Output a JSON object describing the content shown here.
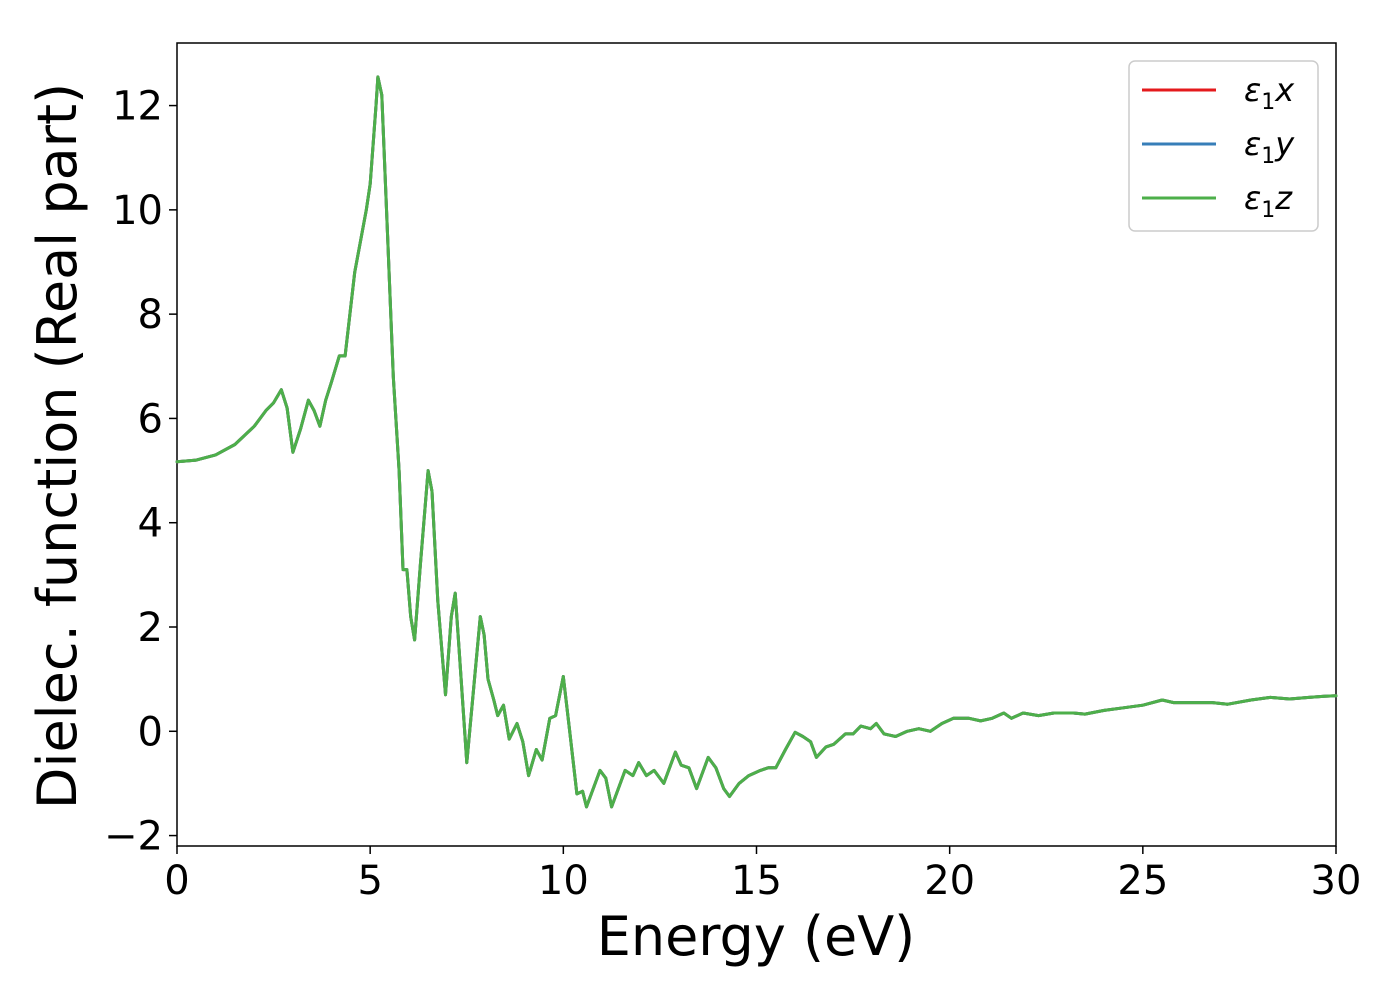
{
  "chart_data": {
    "type": "line",
    "title": "",
    "xlabel": "Energy (eV)",
    "ylabel": "Dielec. function (Real part)",
    "xlim": [
      0,
      30
    ],
    "ylim": [
      -2.2,
      13.2
    ],
    "xticks": [
      0,
      5,
      10,
      15,
      20,
      25,
      30
    ],
    "xtick_labels": [
      "0",
      "5",
      "10",
      "15",
      "20",
      "25",
      "30"
    ],
    "yticks": [
      -2,
      0,
      2,
      4,
      6,
      8,
      10,
      12
    ],
    "ytick_labels": [
      "−2",
      "0",
      "2",
      "4",
      "6",
      "8",
      "10",
      "12"
    ],
    "grid": false,
    "legend_position": "top-right",
    "series": [
      {
        "name": "ε₁x",
        "symbol": "ε",
        "subscript": "1",
        "suffix": "x",
        "color": "#e41a1c"
      },
      {
        "name": "ε₁y",
        "symbol": "ε",
        "subscript": "1",
        "suffix": "y",
        "color": "#377eb8"
      },
      {
        "name": "ε₁z",
        "symbol": "ε",
        "subscript": "1",
        "suffix": "z",
        "color": "#4daf4a"
      }
    ],
    "note_identical_series": true,
    "points": [
      [
        0,
        5.17
      ],
      [
        0.5,
        5.2
      ],
      [
        1.0,
        5.3
      ],
      [
        1.5,
        5.5
      ],
      [
        2.0,
        5.85
      ],
      [
        2.3,
        6.15
      ],
      [
        2.5,
        6.3
      ],
      [
        2.7,
        6.55
      ],
      [
        2.85,
        6.2
      ],
      [
        3.0,
        5.35
      ],
      [
        3.2,
        5.8
      ],
      [
        3.4,
        6.35
      ],
      [
        3.55,
        6.15
      ],
      [
        3.7,
        5.85
      ],
      [
        3.85,
        6.35
      ],
      [
        4.0,
        6.7
      ],
      [
        4.2,
        7.2
      ],
      [
        4.35,
        7.2
      ],
      [
        4.6,
        8.8
      ],
      [
        4.9,
        10.0
      ],
      [
        5.0,
        10.5
      ],
      [
        5.15,
        12.0
      ],
      [
        5.2,
        12.55
      ],
      [
        5.3,
        12.2
      ],
      [
        5.45,
        9.5
      ],
      [
        5.6,
        6.8
      ],
      [
        5.75,
        5.0
      ],
      [
        5.85,
        3.1
      ],
      [
        5.95,
        3.1
      ],
      [
        6.05,
        2.2
      ],
      [
        6.15,
        1.75
      ],
      [
        6.3,
        3.2
      ],
      [
        6.5,
        5.0
      ],
      [
        6.6,
        4.6
      ],
      [
        6.75,
        2.5
      ],
      [
        6.95,
        0.7
      ],
      [
        7.1,
        2.2
      ],
      [
        7.2,
        2.65
      ],
      [
        7.3,
        1.6
      ],
      [
        7.5,
        -0.6
      ],
      [
        7.7,
        1.0
      ],
      [
        7.85,
        2.2
      ],
      [
        7.95,
        1.85
      ],
      [
        8.05,
        1.0
      ],
      [
        8.2,
        0.6
      ],
      [
        8.3,
        0.3
      ],
      [
        8.45,
        0.5
      ],
      [
        8.6,
        -0.15
      ],
      [
        8.8,
        0.15
      ],
      [
        8.95,
        -0.2
      ],
      [
        9.1,
        -0.85
      ],
      [
        9.3,
        -0.35
      ],
      [
        9.45,
        -0.55
      ],
      [
        9.65,
        0.25
      ],
      [
        9.8,
        0.3
      ],
      [
        10.0,
        1.05
      ],
      [
        10.15,
        0.1
      ],
      [
        10.35,
        -1.2
      ],
      [
        10.5,
        -1.15
      ],
      [
        10.6,
        -1.45
      ],
      [
        10.95,
        -0.75
      ],
      [
        11.1,
        -0.9
      ],
      [
        11.25,
        -1.45
      ],
      [
        11.6,
        -0.75
      ],
      [
        11.8,
        -0.85
      ],
      [
        11.95,
        -0.6
      ],
      [
        12.15,
        -0.85
      ],
      [
        12.35,
        -0.75
      ],
      [
        12.6,
        -1.0
      ],
      [
        12.9,
        -0.4
      ],
      [
        13.05,
        -0.65
      ],
      [
        13.25,
        -0.7
      ],
      [
        13.45,
        -1.1
      ],
      [
        13.75,
        -0.5
      ],
      [
        13.95,
        -0.7
      ],
      [
        14.15,
        -1.1
      ],
      [
        14.3,
        -1.25
      ],
      [
        14.55,
        -1.0
      ],
      [
        14.8,
        -0.85
      ],
      [
        15.1,
        -0.75
      ],
      [
        15.3,
        -0.7
      ],
      [
        15.5,
        -0.7
      ],
      [
        15.75,
        -0.35
      ],
      [
        16.0,
        -0.02
      ],
      [
        16.2,
        -0.1
      ],
      [
        16.4,
        -0.2
      ],
      [
        16.55,
        -0.5
      ],
      [
        16.8,
        -0.3
      ],
      [
        17.0,
        -0.25
      ],
      [
        17.3,
        -0.05
      ],
      [
        17.5,
        -0.05
      ],
      [
        17.7,
        0.1
      ],
      [
        17.95,
        0.05
      ],
      [
        18.1,
        0.15
      ],
      [
        18.3,
        -0.05
      ],
      [
        18.6,
        -0.1
      ],
      [
        18.9,
        0.0
      ],
      [
        19.2,
        0.05
      ],
      [
        19.5,
        0.0
      ],
      [
        19.8,
        0.15
      ],
      [
        20.1,
        0.25
      ],
      [
        20.5,
        0.25
      ],
      [
        20.8,
        0.2
      ],
      [
        21.1,
        0.25
      ],
      [
        21.4,
        0.35
      ],
      [
        21.6,
        0.25
      ],
      [
        21.9,
        0.35
      ],
      [
        22.3,
        0.3
      ],
      [
        22.7,
        0.35
      ],
      [
        23.2,
        0.35
      ],
      [
        23.5,
        0.33
      ],
      [
        24.0,
        0.4
      ],
      [
        24.5,
        0.45
      ],
      [
        25.0,
        0.5
      ],
      [
        25.5,
        0.6
      ],
      [
        25.8,
        0.55
      ],
      [
        26.2,
        0.55
      ],
      [
        26.8,
        0.55
      ],
      [
        27.2,
        0.52
      ],
      [
        27.8,
        0.6
      ],
      [
        28.3,
        0.65
      ],
      [
        28.8,
        0.62
      ],
      [
        29.3,
        0.65
      ],
      [
        29.7,
        0.67
      ],
      [
        30.0,
        0.68
      ]
    ]
  }
}
